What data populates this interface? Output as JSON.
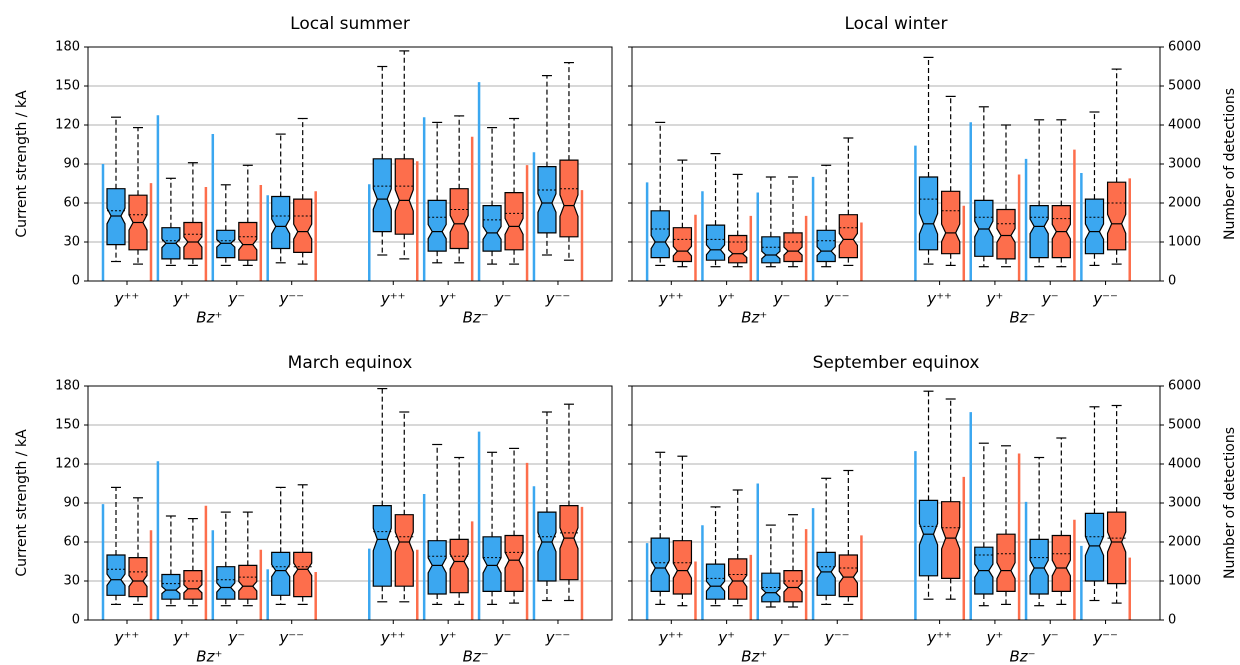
{
  "chart_data": [
    {
      "type": "box",
      "title": "Local summer",
      "ylabel": "Current strength / kA",
      "categories": [
        "y⁺⁺",
        "y⁺",
        "y⁻",
        "y⁻⁻",
        "y⁺⁺",
        "y⁺",
        "y⁻",
        "y⁻⁻"
      ],
      "groups": [
        "Bz⁺",
        "Bz⁻"
      ],
      "ylim": [
        0,
        180
      ],
      "yticks": [
        0,
        30,
        60,
        90,
        120,
        150,
        180
      ],
      "y2lim": [
        0,
        6000
      ],
      "grid": true,
      "series": [
        {
          "color": "#3ba7f0",
          "stats": [
            {
              "whislo": 15,
              "q1": 28,
              "med": 50,
              "q3": 71,
              "whishi": 126,
              "mean": 54
            },
            {
              "whislo": 12,
              "q1": 17,
              "med": 29,
              "q3": 41,
              "whishi": 79,
              "mean": 31
            },
            {
              "whislo": 12,
              "q1": 18,
              "med": 29,
              "q3": 39,
              "whishi": 74,
              "mean": 31
            },
            {
              "whislo": 14,
              "q1": 25,
              "med": 42,
              "q3": 65,
              "whishi": 113,
              "mean": 50
            },
            {
              "whislo": 20,
              "q1": 38,
              "med": 63,
              "q3": 94,
              "whishi": 165,
              "mean": 73
            },
            {
              "whislo": 14,
              "q1": 23,
              "med": 38,
              "q3": 62,
              "whishi": 122,
              "mean": 49
            },
            {
              "whislo": 13,
              "q1": 23,
              "med": 37,
              "q3": 58,
              "whishi": 118,
              "mean": 47
            },
            {
              "whislo": 20,
              "q1": 37,
              "med": 60,
              "q3": 88,
              "whishi": 158,
              "mean": 70
            }
          ]
        },
        {
          "color": "#fd6e4c",
          "stats": [
            {
              "whislo": 13,
              "q1": 24,
              "med": 45,
              "q3": 66,
              "whishi": 118,
              "mean": 51
            },
            {
              "whislo": 12,
              "q1": 17,
              "med": 30,
              "q3": 45,
              "whishi": 91,
              "mean": 36
            },
            {
              "whislo": 12,
              "q1": 16,
              "med": 28,
              "q3": 45,
              "whishi": 89,
              "mean": 34
            },
            {
              "whislo": 13,
              "q1": 22,
              "med": 38,
              "q3": 63,
              "whishi": 125,
              "mean": 50
            },
            {
              "whislo": 17,
              "q1": 36,
              "med": 62,
              "q3": 94,
              "whishi": 177,
              "mean": 73
            },
            {
              "whislo": 14,
              "q1": 25,
              "med": 44,
              "q3": 71,
              "whishi": 127,
              "mean": 55
            },
            {
              "whislo": 13,
              "q1": 24,
              "med": 42,
              "q3": 68,
              "whishi": 125,
              "mean": 52
            },
            {
              "whislo": 16,
              "q1": 34,
              "med": 58,
              "q3": 93,
              "whishi": 168,
              "mean": 71
            }
          ]
        },
        {
          "color": "#3ba7f0",
          "axis": "y2",
          "values": [
            3000,
            4250,
            3770,
            2200,
            2480,
            4200,
            5100,
            3300
          ]
        },
        {
          "color": "#fd6e4c",
          "axis": "y2",
          "values": [
            2510,
            2410,
            2460,
            2300,
            3070,
            3700,
            2970,
            2330
          ]
        }
      ]
    },
    {
      "type": "box",
      "title": "Local winter",
      "y2label": "Number of detections",
      "categories": [
        "y⁺⁺",
        "y⁺",
        "y⁻",
        "y⁻⁻",
        "y⁺⁺",
        "y⁺",
        "y⁻",
        "y⁻⁻"
      ],
      "groups": [
        "Bz⁺",
        "Bz⁻"
      ],
      "ylim": [
        0,
        180
      ],
      "yticks": [
        0,
        30,
        60,
        90,
        120,
        150,
        180
      ],
      "y2lim": [
        0,
        6000
      ],
      "y2ticks": [
        0,
        1000,
        2000,
        3000,
        4000,
        5000,
        6000
      ],
      "grid": true,
      "series": [
        {
          "color": "#3ba7f0",
          "stats": [
            {
              "whislo": 12,
              "q1": 18,
              "med": 30,
              "q3": 54,
              "whishi": 122,
              "mean": 40
            },
            {
              "whislo": 11,
              "q1": 16,
              "med": 24,
              "q3": 43,
              "whishi": 98,
              "mean": 32
            },
            {
              "whislo": 11,
              "q1": 14,
              "med": 20,
              "q3": 34,
              "whishi": 80,
              "mean": 26
            },
            {
              "whislo": 11,
              "q1": 15,
              "med": 23,
              "q3": 39,
              "whishi": 89,
              "mean": 31
            },
            {
              "whislo": 13,
              "q1": 24,
              "med": 44,
              "q3": 80,
              "whishi": 172,
              "mean": 63
            },
            {
              "whislo": 11,
              "q1": 19,
              "med": 40,
              "q3": 62,
              "whishi": 134,
              "mean": 49
            },
            {
              "whislo": 11,
              "q1": 18,
              "med": 42,
              "q3": 58,
              "whishi": 124,
              "mean": 49
            },
            {
              "whislo": 12,
              "q1": 21,
              "med": 38,
              "q3": 63,
              "whishi": 130,
              "mean": 49
            }
          ]
        },
        {
          "color": "#fd6e4c",
          "stats": [
            {
              "whislo": 11,
              "q1": 15,
              "med": 23,
              "q3": 41,
              "whishi": 93,
              "mean": 32
            },
            {
              "whislo": 11,
              "q1": 14,
              "med": 21,
              "q3": 35,
              "whishi": 82,
              "mean": 30
            },
            {
              "whislo": 11,
              "q1": 15,
              "med": 23,
              "q3": 37,
              "whishi": 80,
              "mean": 30
            },
            {
              "whislo": 12,
              "q1": 18,
              "med": 32,
              "q3": 51,
              "whishi": 110,
              "mean": 41
            },
            {
              "whislo": 12,
              "q1": 21,
              "med": 37,
              "q3": 69,
              "whishi": 142,
              "mean": 54
            },
            {
              "whislo": 11,
              "q1": 17,
              "med": 35,
              "q3": 55,
              "whishi": 120,
              "mean": 44
            },
            {
              "whislo": 11,
              "q1": 18,
              "med": 38,
              "q3": 58,
              "whishi": 124,
              "mean": 48
            },
            {
              "whislo": 13,
              "q1": 24,
              "med": 44,
              "q3": 76,
              "whishi": 163,
              "mean": 60
            }
          ]
        },
        {
          "color": "#3ba7f0",
          "axis": "y2",
          "values": [
            2530,
            2300,
            2270,
            2670,
            3470,
            4070,
            3130,
            2770
          ]
        },
        {
          "color": "#fd6e4c",
          "axis": "y2",
          "values": [
            1700,
            1670,
            1670,
            1500,
            1930,
            2730,
            3370,
            2630
          ]
        }
      ]
    },
    {
      "type": "box",
      "title": "March equinox",
      "ylabel": "Current strength / kA",
      "categories": [
        "y⁺⁺",
        "y⁺",
        "y⁻",
        "y⁻⁻",
        "y⁺⁺",
        "y⁺",
        "y⁻",
        "y⁻⁻"
      ],
      "groups": [
        "Bz⁺",
        "Bz⁻"
      ],
      "ylim": [
        0,
        180
      ],
      "yticks": [
        0,
        30,
        60,
        90,
        120,
        150,
        180
      ],
      "y2lim": [
        0,
        6000
      ],
      "grid": true,
      "series": [
        {
          "color": "#3ba7f0",
          "stats": [
            {
              "whislo": 12,
              "q1": 19,
              "med": 31,
              "q3": 50,
              "whishi": 102,
              "mean": 39
            },
            {
              "whislo": 11,
              "q1": 16,
              "med": 23,
              "q3": 35,
              "whishi": 80,
              "mean": 28
            },
            {
              "whislo": 11,
              "q1": 16,
              "med": 25,
              "q3": 41,
              "whishi": 83,
              "mean": 31
            },
            {
              "whislo": 12,
              "q1": 19,
              "med": 38,
              "q3": 52,
              "whishi": 102,
              "mean": 41
            },
            {
              "whislo": 14,
              "q1": 26,
              "med": 62,
              "q3": 88,
              "whishi": 178,
              "mean": 68
            },
            {
              "whislo": 12,
              "q1": 20,
              "med": 42,
              "q3": 61,
              "whishi": 135,
              "mean": 49
            },
            {
              "whislo": 12,
              "q1": 22,
              "med": 42,
              "q3": 64,
              "whishi": 129,
              "mean": 48
            },
            {
              "whislo": 15,
              "q1": 30,
              "med": 60,
              "q3": 83,
              "whishi": 160,
              "mean": 64
            }
          ]
        },
        {
          "color": "#fd6e4c",
          "stats": [
            {
              "whislo": 12,
              "q1": 18,
              "med": 30,
              "q3": 48,
              "whishi": 94,
              "mean": 37
            },
            {
              "whislo": 11,
              "q1": 16,
              "med": 24,
              "q3": 38,
              "whishi": 78,
              "mean": 30
            },
            {
              "whislo": 11,
              "q1": 16,
              "med": 26,
              "q3": 42,
              "whishi": 83,
              "mean": 33
            },
            {
              "whislo": 12,
              "q1": 18,
              "med": 39,
              "q3": 52,
              "whishi": 104,
              "mean": 41
            },
            {
              "whislo": 14,
              "q1": 26,
              "med": 60,
              "q3": 81,
              "whishi": 160,
              "mean": 64
            },
            {
              "whislo": 12,
              "q1": 21,
              "med": 45,
              "q3": 62,
              "whishi": 125,
              "mean": 49
            },
            {
              "whislo": 13,
              "q1": 22,
              "med": 46,
              "q3": 65,
              "whishi": 132,
              "mean": 52
            },
            {
              "whislo": 15,
              "q1": 31,
              "med": 63,
              "q3": 88,
              "whishi": 166,
              "mean": 67
            }
          ]
        },
        {
          "color": "#3ba7f0",
          "axis": "y2",
          "values": [
            2970,
            4070,
            2300,
            1300,
            1830,
            3230,
            4830,
            3430
          ]
        },
        {
          "color": "#fd6e4c",
          "axis": "y2",
          "values": [
            2300,
            2930,
            1800,
            1230,
            1800,
            2530,
            4030,
            2900
          ]
        }
      ]
    },
    {
      "type": "box",
      "title": "September equinox",
      "y2label": "Number of detections",
      "categories": [
        "y⁺⁺",
        "y⁺",
        "y⁻",
        "y⁻⁻",
        "y⁺⁺",
        "y⁺",
        "y⁻",
        "y⁻⁻"
      ],
      "groups": [
        "Bz⁺",
        "Bz⁻"
      ],
      "ylim": [
        0,
        180
      ],
      "yticks": [
        0,
        30,
        60,
        90,
        120,
        150,
        180
      ],
      "y2lim": [
        0,
        6000
      ],
      "y2ticks": [
        0,
        1000,
        2000,
        3000,
        4000,
        5000,
        6000
      ],
      "grid": true,
      "series": [
        {
          "color": "#3ba7f0",
          "stats": [
            {
              "whislo": 12,
              "q1": 22,
              "med": 40,
              "q3": 63,
              "whishi": 129,
              "mean": 44
            },
            {
              "whislo": 11,
              "q1": 16,
              "med": 26,
              "q3": 43,
              "whishi": 87,
              "mean": 32
            },
            {
              "whislo": 10,
              "q1": 14,
              "med": 21,
              "q3": 36,
              "whishi": 73,
              "mean": 25
            },
            {
              "whislo": 12,
              "q1": 19,
              "med": 37,
              "q3": 52,
              "whishi": 109,
              "mean": 41
            },
            {
              "whislo": 16,
              "q1": 34,
              "med": 66,
              "q3": 92,
              "whishi": 176,
              "mean": 72
            },
            {
              "whislo": 11,
              "q1": 20,
              "med": 38,
              "q3": 56,
              "whishi": 136,
              "mean": 50
            },
            {
              "whislo": 11,
              "q1": 20,
              "med": 40,
              "q3": 62,
              "whishi": 125,
              "mean": 48
            },
            {
              "whislo": 15,
              "q1": 30,
              "med": 57,
              "q3": 82,
              "whishi": 164,
              "mean": 64
            }
          ]
        },
        {
          "color": "#fd6e4c",
          "stats": [
            {
              "whislo": 11,
              "q1": 20,
              "med": 38,
              "q3": 61,
              "whishi": 126,
              "mean": 44
            },
            {
              "whislo": 11,
              "q1": 16,
              "med": 30,
              "q3": 47,
              "whishi": 100,
              "mean": 35
            },
            {
              "whislo": 10,
              "q1": 14,
              "med": 25,
              "q3": 38,
              "whishi": 81,
              "mean": 30
            },
            {
              "whislo": 12,
              "q1": 18,
              "med": 33,
              "q3": 50,
              "whishi": 115,
              "mean": 40
            },
            {
              "whislo": 16,
              "q1": 32,
              "med": 63,
              "q3": 91,
              "whishi": 170,
              "mean": 71
            },
            {
              "whislo": 12,
              "q1": 22,
              "med": 38,
              "q3": 66,
              "whishi": 134,
              "mean": 51
            },
            {
              "whislo": 12,
              "q1": 22,
              "med": 40,
              "q3": 65,
              "whishi": 140,
              "mean": 51
            },
            {
              "whislo": 13,
              "q1": 28,
              "med": 60,
              "q3": 83,
              "whishi": 165,
              "mean": 63
            }
          ]
        },
        {
          "color": "#3ba7f0",
          "axis": "y2",
          "values": [
            1970,
            2430,
            3500,
            2870,
            4330,
            5330,
            3030,
            1900
          ]
        },
        {
          "color": "#fd6e4c",
          "axis": "y2",
          "values": [
            1500,
            1670,
            2330,
            2170,
            3670,
            4270,
            2570,
            1600
          ]
        }
      ]
    }
  ]
}
